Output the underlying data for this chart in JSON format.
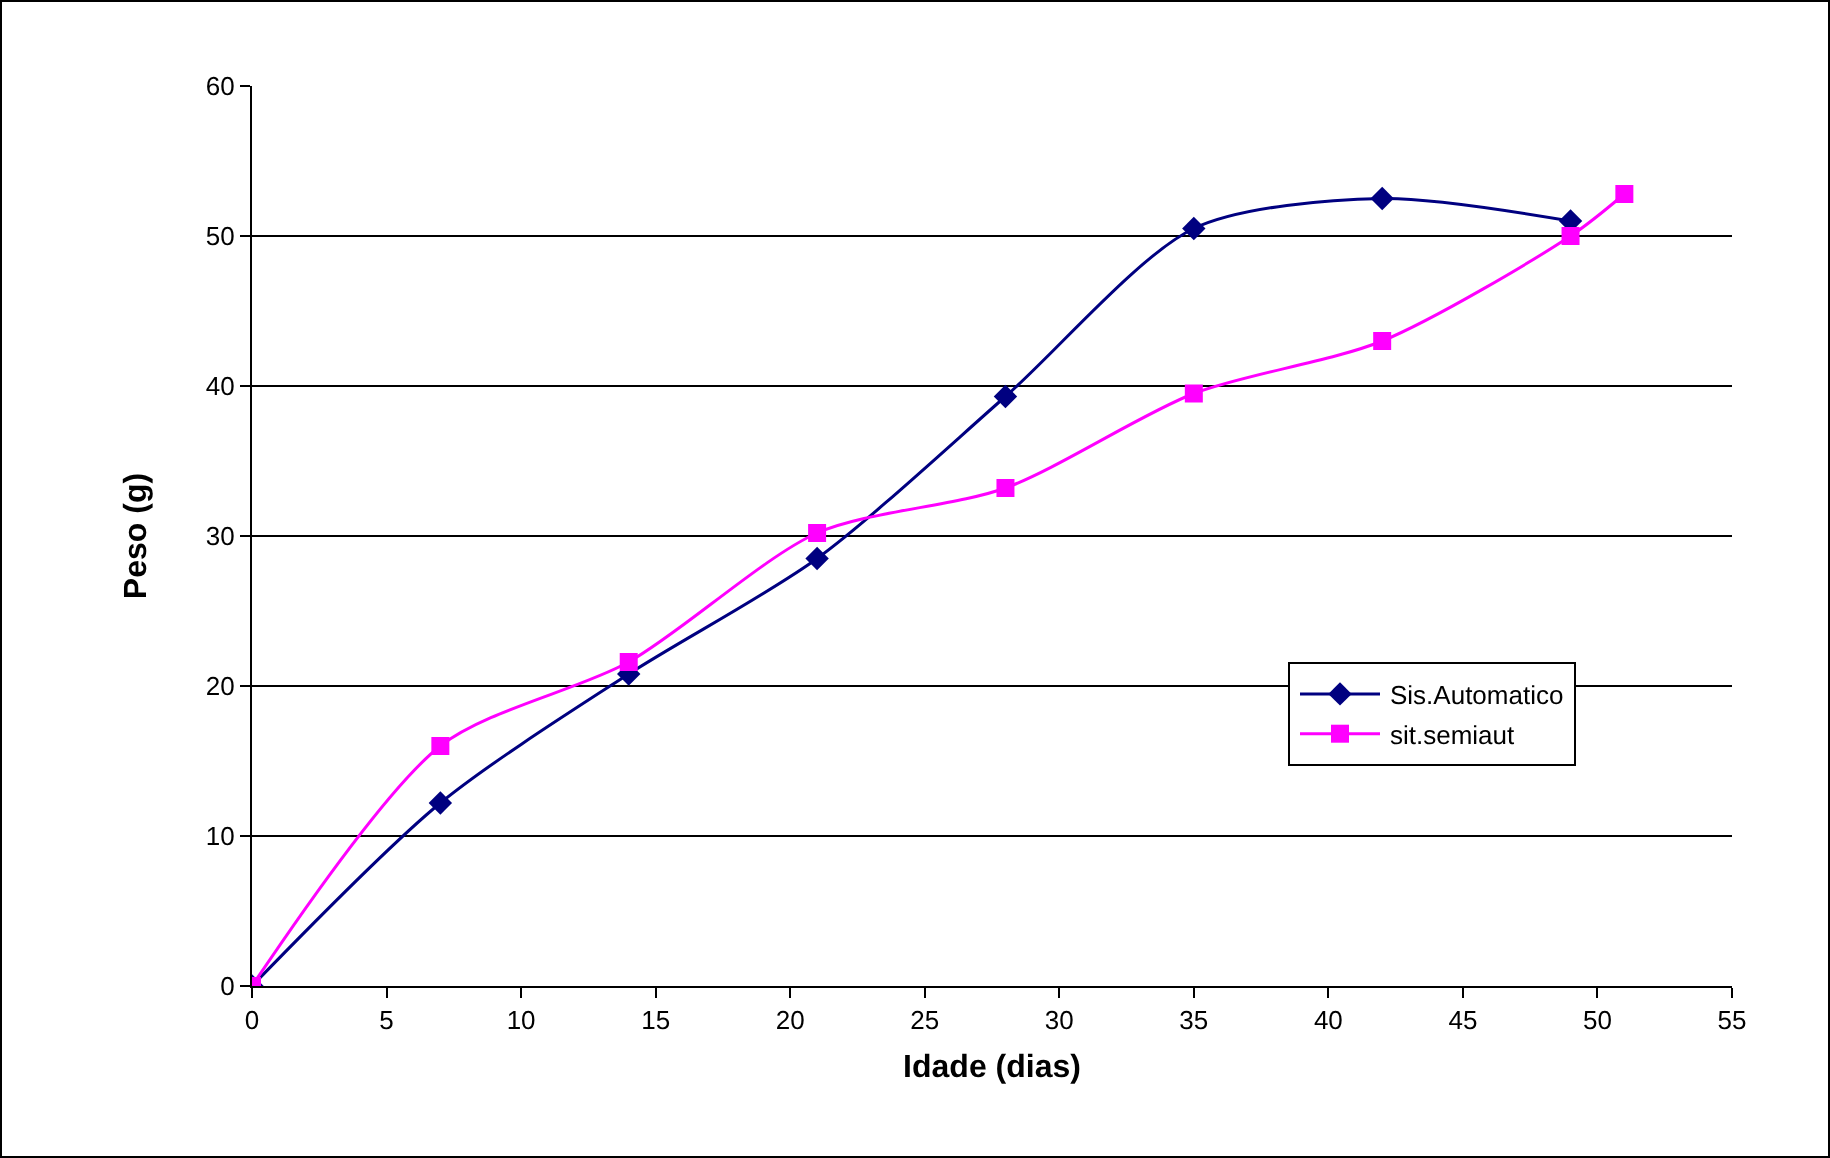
{
  "chart_data": {
    "type": "line",
    "xlabel": "Idade (dias)",
    "ylabel": "Peso (g)",
    "xlim": [
      0,
      55
    ],
    "xticks": [
      0,
      5,
      10,
      15,
      20,
      25,
      30,
      35,
      40,
      45,
      50,
      55
    ],
    "ylim": [
      0,
      60
    ],
    "yticks": [
      0,
      10,
      20,
      30,
      40,
      50,
      60
    ],
    "grid": "y",
    "legend": "right",
    "line_style": "solid",
    "series": [
      {
        "name": "Sis.Automatico",
        "color": "#000080",
        "marker": "diamond",
        "x": [
          0,
          7,
          14,
          21,
          28,
          35,
          42,
          49
        ],
        "values": [
          0,
          12.2,
          20.8,
          28.5,
          39.3,
          50.5,
          52.5,
          51
        ]
      },
      {
        "name": "sit.semiaut",
        "color": "#ff00ff",
        "marker": "square",
        "x": [
          0,
          7,
          14,
          21,
          28,
          35,
          42,
          49,
          51
        ],
        "values": [
          0,
          16,
          21.6,
          30.2,
          33.2,
          39.5,
          43,
          50,
          52.8
        ]
      }
    ]
  }
}
